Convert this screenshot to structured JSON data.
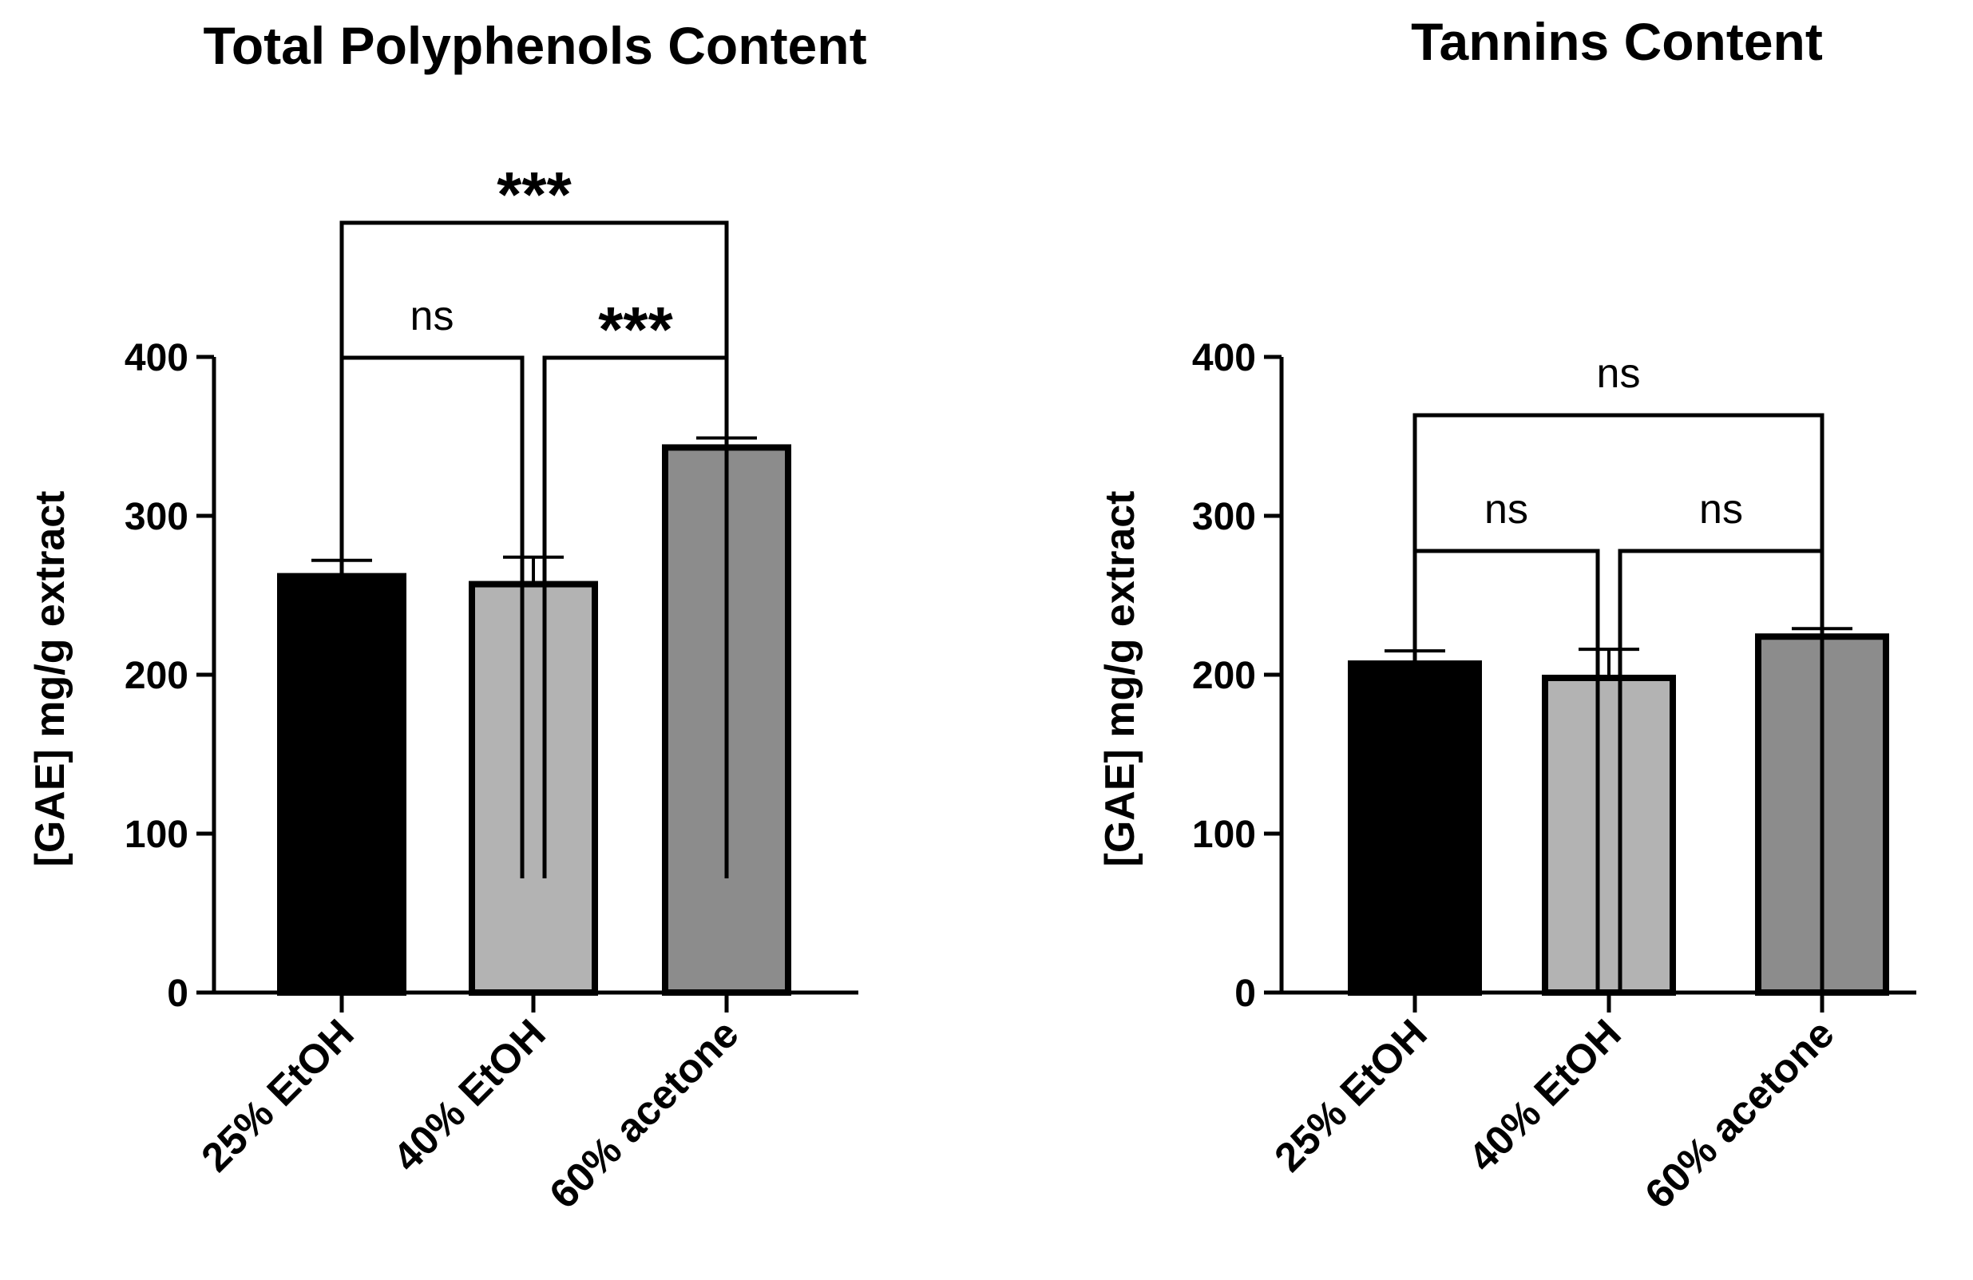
{
  "chart_data": [
    {
      "type": "bar",
      "title": "Total Polyphenols Content",
      "ylabel": "[GAE] mg/g extract",
      "ylim": [
        0,
        400
      ],
      "yticks": [
        "0",
        "100",
        "200",
        "300",
        "400"
      ],
      "categories": [
        "25% EtOH",
        "40% EtOH",
        "60% acetone"
      ],
      "values": [
        262,
        257,
        343
      ],
      "errors": [
        10,
        17,
        6
      ],
      "colors": [
        "#000000",
        "#b3b3b3",
        "#8c8c8c"
      ],
      "comparisons": [
        {
          "from": "25% EtOH",
          "to": "40% EtOH",
          "label": "ns"
        },
        {
          "from": "40% EtOH",
          "to": "60% acetone",
          "label": "***"
        },
        {
          "from": "25% EtOH",
          "to": "60% acetone",
          "label": "***"
        }
      ]
    },
    {
      "type": "bar",
      "title": "Tannins Content",
      "ylabel": "[GAE] mg/g extract",
      "ylim": [
        0,
        400
      ],
      "yticks": [
        "0",
        "100",
        "200",
        "300",
        "400"
      ],
      "categories": [
        "25% EtOH",
        "40% EtOH",
        "60% acetone"
      ],
      "values": [
        207,
        198,
        224
      ],
      "errors": [
        8,
        18,
        5
      ],
      "colors": [
        "#000000",
        "#b3b3b3",
        "#8c8c8c"
      ],
      "comparisons": [
        {
          "from": "25% EtOH",
          "to": "40% EtOH",
          "label": "ns"
        },
        {
          "from": "40% EtOH",
          "to": "60% acetone",
          "label": "ns"
        },
        {
          "from": "25% EtOH",
          "to": "60% acetone",
          "label": "ns"
        }
      ]
    }
  ]
}
